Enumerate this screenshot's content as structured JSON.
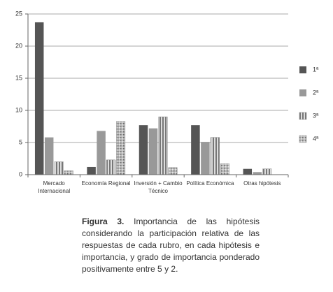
{
  "chart_data": {
    "type": "bar",
    "categories": [
      "Mercado Internacional",
      "Economía Regional",
      "Inversión + Cambio Técnico",
      "Política Económica",
      "Otras hipótesis"
    ],
    "series": [
      {
        "name": "1ª",
        "color": "#555555",
        "pattern": "solid",
        "values": [
          23.7,
          1.2,
          7.7,
          7.7,
          0.9
        ]
      },
      {
        "name": "2ª",
        "color": "#999999",
        "pattern": "solid",
        "values": [
          5.8,
          6.8,
          7.2,
          5.1,
          0.4
        ]
      },
      {
        "name": "3ª",
        "color": "#8a8a8a",
        "pattern": "stripes",
        "values": [
          2.0,
          2.3,
          9.0,
          5.8,
          0.9
        ]
      },
      {
        "name": "4ª",
        "color": "#9a9a9a",
        "pattern": "dots",
        "values": [
          0.6,
          8.3,
          1.1,
          1.7,
          0
        ]
      }
    ],
    "ylim": [
      0,
      25
    ],
    "yticks": [
      0,
      5,
      10,
      15,
      20,
      25
    ],
    "grid": true,
    "legend": "right"
  },
  "caption": {
    "label": "Figura 3.",
    "text": "Importancia de las hipótesis considerando la participación relativa de las respuestas de cada rubro, en cada hipótesis e importancia, y grado de importancia ponderado positivamente entre 5 y 2."
  }
}
